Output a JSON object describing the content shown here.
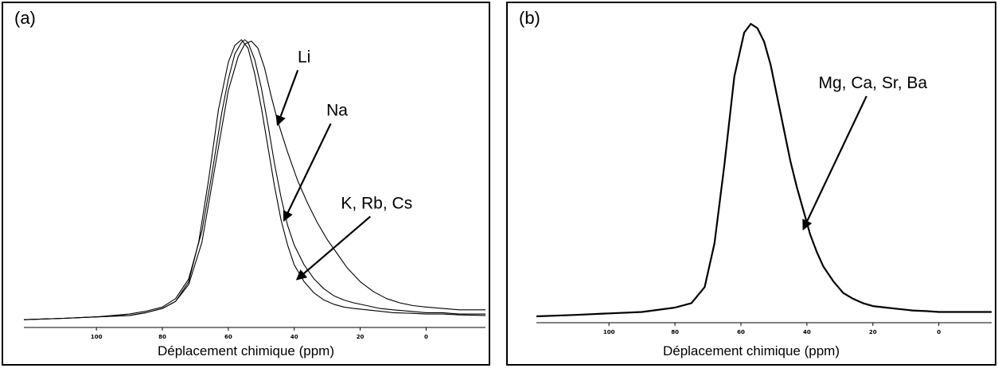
{
  "chart_data": [
    {
      "type": "line",
      "panel_label": "(a)",
      "xlabel": "Déplacement chimique (ppm)",
      "ylabel": "",
      "x_reversed": true,
      "xlim": [
        122,
        -18
      ],
      "ylim": [
        0,
        1
      ],
      "xticks": [
        100,
        80,
        60,
        40,
        20,
        0
      ],
      "tick_labels": [
        "100",
        "80",
        "60",
        "40",
        "20",
        "0"
      ],
      "series": [
        {
          "name": "Li",
          "x": [
            122,
            110,
            100,
            90,
            85,
            80,
            76,
            72,
            68,
            64,
            60,
            57,
            55,
            53,
            51,
            49,
            47,
            45,
            42,
            39,
            36,
            33,
            30,
            27,
            24,
            20,
            16,
            12,
            8,
            4,
            0,
            -5,
            -10,
            -18
          ],
          "y": [
            0.005,
            0.01,
            0.015,
            0.02,
            0.03,
            0.045,
            0.07,
            0.13,
            0.28,
            0.55,
            0.82,
            0.94,
            0.985,
            0.995,
            0.97,
            0.9,
            0.8,
            0.71,
            0.6,
            0.5,
            0.42,
            0.35,
            0.29,
            0.24,
            0.19,
            0.14,
            0.105,
            0.08,
            0.065,
            0.055,
            0.05,
            0.045,
            0.04,
            0.04
          ]
        },
        {
          "name": "Na",
          "x": [
            122,
            110,
            100,
            90,
            85,
            80,
            76,
            72,
            68,
            65,
            62,
            60,
            58,
            56,
            55,
            54,
            52,
            50,
            48,
            46,
            44,
            42,
            40,
            37,
            34,
            31,
            28,
            25,
            22,
            18,
            14,
            10,
            5,
            0,
            -5,
            -10,
            -18
          ],
          "y": [
            0.005,
            0.01,
            0.015,
            0.025,
            0.035,
            0.05,
            0.08,
            0.15,
            0.32,
            0.52,
            0.74,
            0.86,
            0.95,
            0.99,
            1.0,
            0.99,
            0.93,
            0.83,
            0.7,
            0.56,
            0.44,
            0.34,
            0.27,
            0.2,
            0.15,
            0.115,
            0.09,
            0.075,
            0.065,
            0.055,
            0.045,
            0.04,
            0.035,
            0.03,
            0.03,
            0.025,
            0.025
          ]
        },
        {
          "name": "K, Rb, Cs",
          "x": [
            122,
            110,
            100,
            90,
            85,
            80,
            76,
            72,
            69,
            66,
            63,
            60,
            58,
            56,
            54,
            52,
            50,
            48,
            46,
            44,
            42,
            40,
            37,
            34,
            31,
            28,
            25,
            22,
            18,
            14,
            10,
            5,
            0,
            -5,
            -10,
            -18
          ],
          "y": [
            0.005,
            0.01,
            0.015,
            0.02,
            0.03,
            0.045,
            0.07,
            0.14,
            0.28,
            0.5,
            0.75,
            0.92,
            0.98,
            1.0,
            0.97,
            0.88,
            0.76,
            0.62,
            0.48,
            0.36,
            0.27,
            0.2,
            0.14,
            0.1,
            0.075,
            0.06,
            0.05,
            0.045,
            0.04,
            0.035,
            0.03,
            0.028,
            0.025,
            0.025,
            0.022,
            0.02
          ]
        }
      ],
      "annotations": [
        {
          "text": "Li",
          "x": 37,
          "y": 0.92,
          "arrow_to": [
            45,
            0.7
          ]
        },
        {
          "text": "Na",
          "x": 27,
          "y": 0.73,
          "arrow_to": [
            43,
            0.36
          ]
        },
        {
          "text": "K, Rb, Cs",
          "x": 15,
          "y": 0.4,
          "arrow_to": [
            39,
            0.15
          ]
        }
      ]
    },
    {
      "type": "line",
      "panel_label": "(b)",
      "xlabel": "Déplacement chimique (ppm)",
      "ylabel": "",
      "x_reversed": true,
      "xlim": [
        122,
        -16
      ],
      "ylim": [
        0,
        1
      ],
      "xticks": [
        100,
        80,
        60,
        40,
        20,
        0
      ],
      "tick_labels": [
        "100",
        "80",
        "60",
        "40",
        "20",
        "0"
      ],
      "series": [
        {
          "name": "Mg, Ca, Sr, Ba",
          "x": [
            122,
            110,
            100,
            90,
            80,
            75,
            71,
            68,
            65,
            62,
            59,
            57,
            55,
            53,
            51,
            49,
            47,
            45,
            43,
            41,
            39,
            37,
            35,
            32,
            29,
            26,
            23,
            20,
            16,
            12,
            8,
            4,
            0,
            -5,
            -10,
            -16
          ],
          "y": [
            0.0,
            0.005,
            0.01,
            0.015,
            0.03,
            0.045,
            0.1,
            0.25,
            0.52,
            0.82,
            0.97,
            1.0,
            0.985,
            0.94,
            0.86,
            0.75,
            0.64,
            0.53,
            0.44,
            0.36,
            0.28,
            0.22,
            0.17,
            0.12,
            0.08,
            0.06,
            0.045,
            0.035,
            0.03,
            0.025,
            0.02,
            0.018,
            0.015,
            0.015,
            0.015,
            0.015
          ]
        }
      ],
      "annotations": [
        {
          "text": "Mg, Ca, Sr, Ba",
          "x": 20,
          "y": 0.78,
          "arrow_to": [
            41,
            0.3
          ]
        }
      ]
    }
  ]
}
